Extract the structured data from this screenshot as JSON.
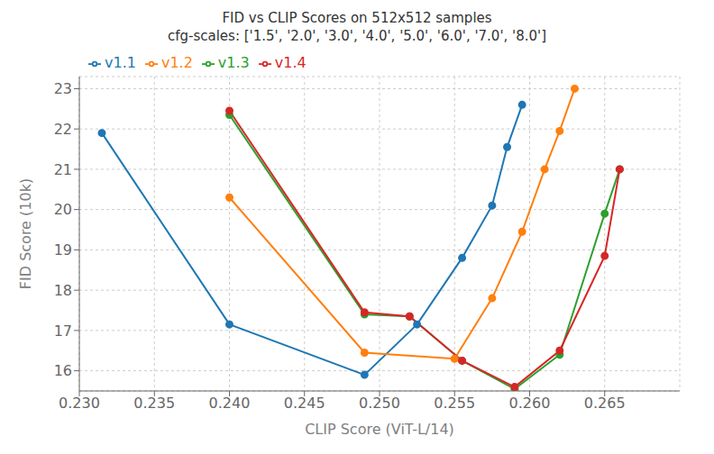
{
  "chart_data": {
    "type": "line",
    "title": "FID vs CLIP Scores on 512x512 samples",
    "subtitle": "cfg-scales: ['1.5', '2.0', '3.0', '4.0', '5.0', '6.0', '7.0', '8.0']",
    "xlabel": "CLIP Score (ViT-L/14)",
    "ylabel": "FID Score (10k)",
    "xlim": [
      0.23,
      0.27
    ],
    "ylim": [
      15.5,
      23.3
    ],
    "xticks": [
      {
        "value": 0.23,
        "label": "0.230"
      },
      0.235,
      {
        "value": 0.24,
        "label": "0.240"
      },
      0.245,
      {
        "value": 0.25,
        "label": "0.250"
      },
      0.255,
      {
        "value": 0.26,
        "label": "0.260"
      },
      0.265
    ],
    "yticks": [
      16,
      17,
      18,
      19,
      20,
      21,
      22,
      23
    ],
    "grid": true,
    "legend": "upper left",
    "marker": "circle",
    "series": [
      {
        "name": "v1.1",
        "color": "#1f77b4",
        "x": [
          0.2315,
          0.24,
          0.249,
          0.2525,
          0.2555,
          0.2575,
          0.2585,
          0.2595
        ],
        "values": [
          21.9,
          17.15,
          15.9,
          17.15,
          18.8,
          20.1,
          21.55,
          22.6
        ]
      },
      {
        "name": "v1.2",
        "color": "#ff7f0e",
        "x": [
          0.24,
          0.249,
          0.255,
          0.2575,
          0.2595,
          0.261,
          0.262,
          0.263
        ],
        "values": [
          20.3,
          16.45,
          16.3,
          17.8,
          19.45,
          21.0,
          21.95,
          23.0
        ]
      },
      {
        "name": "v1.3",
        "color": "#2ca02c",
        "x": [
          0.24,
          0.249,
          0.252,
          0.2555,
          0.259,
          0.262,
          0.265,
          0.266
        ],
        "values": [
          22.35,
          17.4,
          17.35,
          16.25,
          15.55,
          16.4,
          19.9,
          21.0
        ]
      },
      {
        "name": "v1.4",
        "color": "#d62728",
        "x": [
          0.24,
          0.249,
          0.252,
          0.2555,
          0.259,
          0.262,
          0.265,
          0.266
        ],
        "values": [
          22.45,
          17.45,
          17.35,
          16.25,
          15.6,
          16.5,
          18.85,
          21.0
        ]
      }
    ]
  }
}
